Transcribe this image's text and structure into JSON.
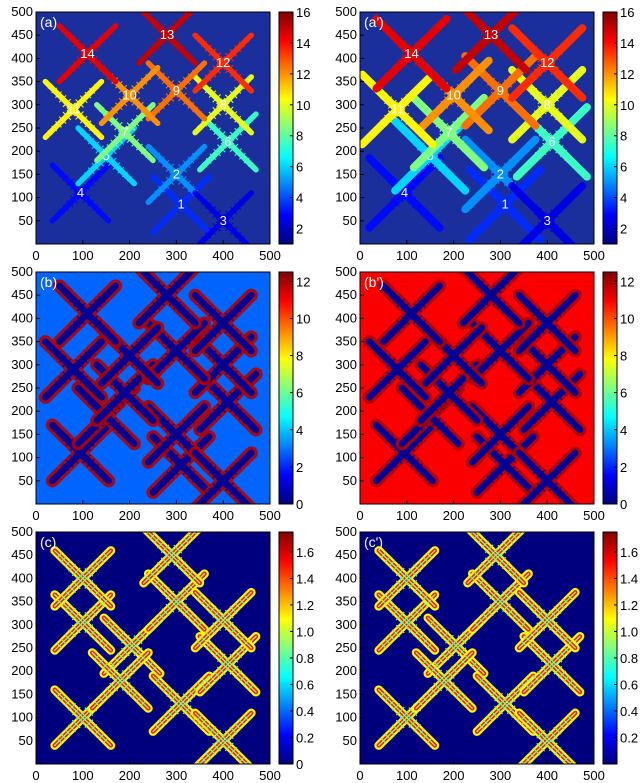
{
  "figure": {
    "colormap": [
      "#00007f",
      "#0000ff",
      "#0080ff",
      "#00ffff",
      "#80ff80",
      "#ffff00",
      "#ff8000",
      "#ff0000",
      "#7f0000"
    ],
    "background_color": "#1a2f9c"
  },
  "chart_data": [
    {
      "type": "heatmap",
      "panel": "a",
      "label": "(a)",
      "field": "grain_id",
      "xlim": [
        0,
        500
      ],
      "ylim": [
        0,
        500
      ],
      "xticks": [
        0,
        100,
        200,
        300,
        400,
        500
      ],
      "yticks": [
        50,
        100,
        150,
        200,
        250,
        300,
        350,
        400,
        450,
        500
      ],
      "colorbar": {
        "range": [
          1,
          16
        ],
        "ticks": [
          2,
          4,
          6,
          8,
          10,
          12,
          14,
          16
        ]
      },
      "grains": [
        {
          "id": "1",
          "x": 310,
          "y": 85,
          "value": 3.5
        },
        {
          "id": "2",
          "x": 300,
          "y": 150,
          "value": 5
        },
        {
          "id": "3",
          "x": 400,
          "y": 50,
          "value": 2.5
        },
        {
          "id": "4",
          "x": 95,
          "y": 110,
          "value": 3
        },
        {
          "id": "5",
          "x": 150,
          "y": 190,
          "value": 6
        },
        {
          "id": "6",
          "x": 410,
          "y": 220,
          "value": 7.5
        },
        {
          "id": "7",
          "x": 190,
          "y": 240,
          "value": 8.5
        },
        {
          "id": "8",
          "x": 400,
          "y": 300,
          "value": 10
        },
        {
          "id": "9",
          "x": 300,
          "y": 330,
          "value": 12.5
        },
        {
          "id": "10",
          "x": 200,
          "y": 320,
          "value": 12
        },
        {
          "id": "11",
          "x": 80,
          "y": 290,
          "value": 10.5
        },
        {
          "id": "12",
          "x": 400,
          "y": 390,
          "value": 13.5
        },
        {
          "id": "13",
          "x": 280,
          "y": 450,
          "value": 15
        },
        {
          "id": "14",
          "x": 110,
          "y": 410,
          "value": 14.5
        }
      ]
    },
    {
      "type": "heatmap",
      "panel": "a'",
      "label": "(a')",
      "field": "grain_id",
      "xlim": [
        0,
        500
      ],
      "ylim": [
        0,
        500
      ],
      "xticks": [
        0,
        100,
        200,
        300,
        400,
        500
      ],
      "yticks": [
        50,
        100,
        150,
        200,
        250,
        300,
        350,
        400,
        450,
        500
      ],
      "colorbar": {
        "range": [
          1,
          16
        ],
        "ticks": [
          2,
          4,
          6,
          8,
          10,
          12,
          14,
          16
        ]
      },
      "grains": [
        {
          "id": "1",
          "x": 310,
          "y": 85,
          "value": 3.5
        },
        {
          "id": "2",
          "x": 300,
          "y": 150,
          "value": 5
        },
        {
          "id": "3",
          "x": 400,
          "y": 50,
          "value": 2.5
        },
        {
          "id": "4",
          "x": 95,
          "y": 110,
          "value": 3
        },
        {
          "id": "5",
          "x": 150,
          "y": 190,
          "value": 6
        },
        {
          "id": "6",
          "x": 410,
          "y": 220,
          "value": 7.5
        },
        {
          "id": "7",
          "x": 190,
          "y": 240,
          "value": 8.5
        },
        {
          "id": "8",
          "x": 400,
          "y": 300,
          "value": 10
        },
        {
          "id": "9",
          "x": 300,
          "y": 330,
          "value": 12.5
        },
        {
          "id": "10",
          "x": 200,
          "y": 320,
          "value": 12
        },
        {
          "id": "11",
          "x": 80,
          "y": 290,
          "value": 10.5
        },
        {
          "id": "12",
          "x": 400,
          "y": 390,
          "value": 13.5
        },
        {
          "id": "13",
          "x": 280,
          "y": 450,
          "value": 15
        },
        {
          "id": "14",
          "x": 110,
          "y": 410,
          "value": 14.5
        }
      ]
    },
    {
      "type": "heatmap",
      "panel": "b",
      "label": "(b)",
      "field": "solute",
      "xlim": [
        0,
        500
      ],
      "ylim": [
        0,
        500
      ],
      "xticks": [
        0,
        100,
        200,
        300,
        400,
        500
      ],
      "yticks": [
        50,
        100,
        150,
        200,
        250,
        300,
        350,
        400,
        450,
        500
      ],
      "colorbar": {
        "range": [
          0,
          12.5
        ],
        "ticks": [
          0,
          2,
          4,
          6,
          8,
          10,
          12
        ]
      },
      "background_value": 2.8,
      "dendrites": [
        {
          "x": 310,
          "y": 85
        },
        {
          "x": 300,
          "y": 150
        },
        {
          "x": 400,
          "y": 50
        },
        {
          "x": 95,
          "y": 110
        },
        {
          "x": 150,
          "y": 190
        },
        {
          "x": 410,
          "y": 220
        },
        {
          "x": 190,
          "y": 240
        },
        {
          "x": 400,
          "y": 300
        },
        {
          "x": 300,
          "y": 330
        },
        {
          "x": 200,
          "y": 320
        },
        {
          "x": 80,
          "y": 290
        },
        {
          "x": 400,
          "y": 390
        },
        {
          "x": 280,
          "y": 450
        },
        {
          "x": 110,
          "y": 410
        }
      ]
    },
    {
      "type": "heatmap",
      "panel": "b'",
      "label": "(b')",
      "field": "solute",
      "xlim": [
        0,
        500
      ],
      "ylim": [
        0,
        500
      ],
      "xticks": [
        0,
        100,
        200,
        300,
        400,
        500
      ],
      "yticks": [
        50,
        100,
        150,
        200,
        250,
        300,
        350,
        400,
        450,
        500
      ],
      "colorbar": {
        "range": [
          0,
          12.5
        ],
        "ticks": [
          0,
          2,
          4,
          6,
          8,
          10,
          12
        ]
      },
      "background_value": 11,
      "dendrites": [
        {
          "x": 310,
          "y": 85
        },
        {
          "x": 300,
          "y": 150
        },
        {
          "x": 400,
          "y": 50
        },
        {
          "x": 95,
          "y": 110
        },
        {
          "x": 150,
          "y": 190
        },
        {
          "x": 410,
          "y": 220
        },
        {
          "x": 190,
          "y": 240
        },
        {
          "x": 400,
          "y": 300
        },
        {
          "x": 300,
          "y": 330
        },
        {
          "x": 200,
          "y": 320
        },
        {
          "x": 80,
          "y": 290
        },
        {
          "x": 400,
          "y": 390
        },
        {
          "x": 280,
          "y": 450
        },
        {
          "x": 110,
          "y": 410
        }
      ]
    },
    {
      "type": "heatmap",
      "panel": "c",
      "label": "(c)",
      "field": "phase",
      "xlim": [
        0,
        500
      ],
      "ylim": [
        0,
        500
      ],
      "xticks": [
        0,
        100,
        200,
        300,
        400,
        500
      ],
      "yticks": [
        50,
        100,
        150,
        200,
        250,
        300,
        350,
        400,
        450,
        500
      ],
      "colorbar": {
        "range": [
          0,
          1.75
        ],
        "ticks": [
          "0",
          "0.2",
          "0.4",
          "0.6",
          "0.8",
          "1.0",
          "1.2",
          "1.4",
          "1.6"
        ]
      },
      "background_value": 0,
      "dendrites": [
        {
          "x": 310,
          "y": 130
        },
        {
          "x": 100,
          "y": 100
        },
        {
          "x": 400,
          "y": 50
        },
        {
          "x": 410,
          "y": 215
        },
        {
          "x": 100,
          "y": 305
        },
        {
          "x": 205,
          "y": 255
        },
        {
          "x": 100,
          "y": 400
        },
        {
          "x": 300,
          "y": 350
        },
        {
          "x": 400,
          "y": 310
        },
        {
          "x": 290,
          "y": 450
        },
        {
          "x": 180,
          "y": 180
        }
      ]
    },
    {
      "type": "heatmap",
      "panel": "c'",
      "label": "(c')",
      "field": "phase",
      "xlim": [
        0,
        500
      ],
      "ylim": [
        0,
        500
      ],
      "xticks": [
        0,
        100,
        200,
        300,
        400,
        500
      ],
      "yticks": [
        50,
        100,
        150,
        200,
        250,
        300,
        350,
        400,
        450,
        500
      ],
      "colorbar": {
        "range": [
          0,
          1.75
        ],
        "ticks": [
          "0.2",
          "0.4",
          "0.6",
          "0.8",
          "1.0",
          "1.2",
          "1.4",
          "1.6"
        ]
      },
      "background_value": 0,
      "dendrites": [
        {
          "x": 310,
          "y": 130
        },
        {
          "x": 100,
          "y": 100
        },
        {
          "x": 400,
          "y": 50
        },
        {
          "x": 410,
          "y": 215
        },
        {
          "x": 100,
          "y": 305
        },
        {
          "x": 205,
          "y": 255
        },
        {
          "x": 100,
          "y": 400
        },
        {
          "x": 300,
          "y": 350
        },
        {
          "x": 400,
          "y": 310
        },
        {
          "x": 290,
          "y": 450
        },
        {
          "x": 180,
          "y": 180
        }
      ]
    }
  ]
}
